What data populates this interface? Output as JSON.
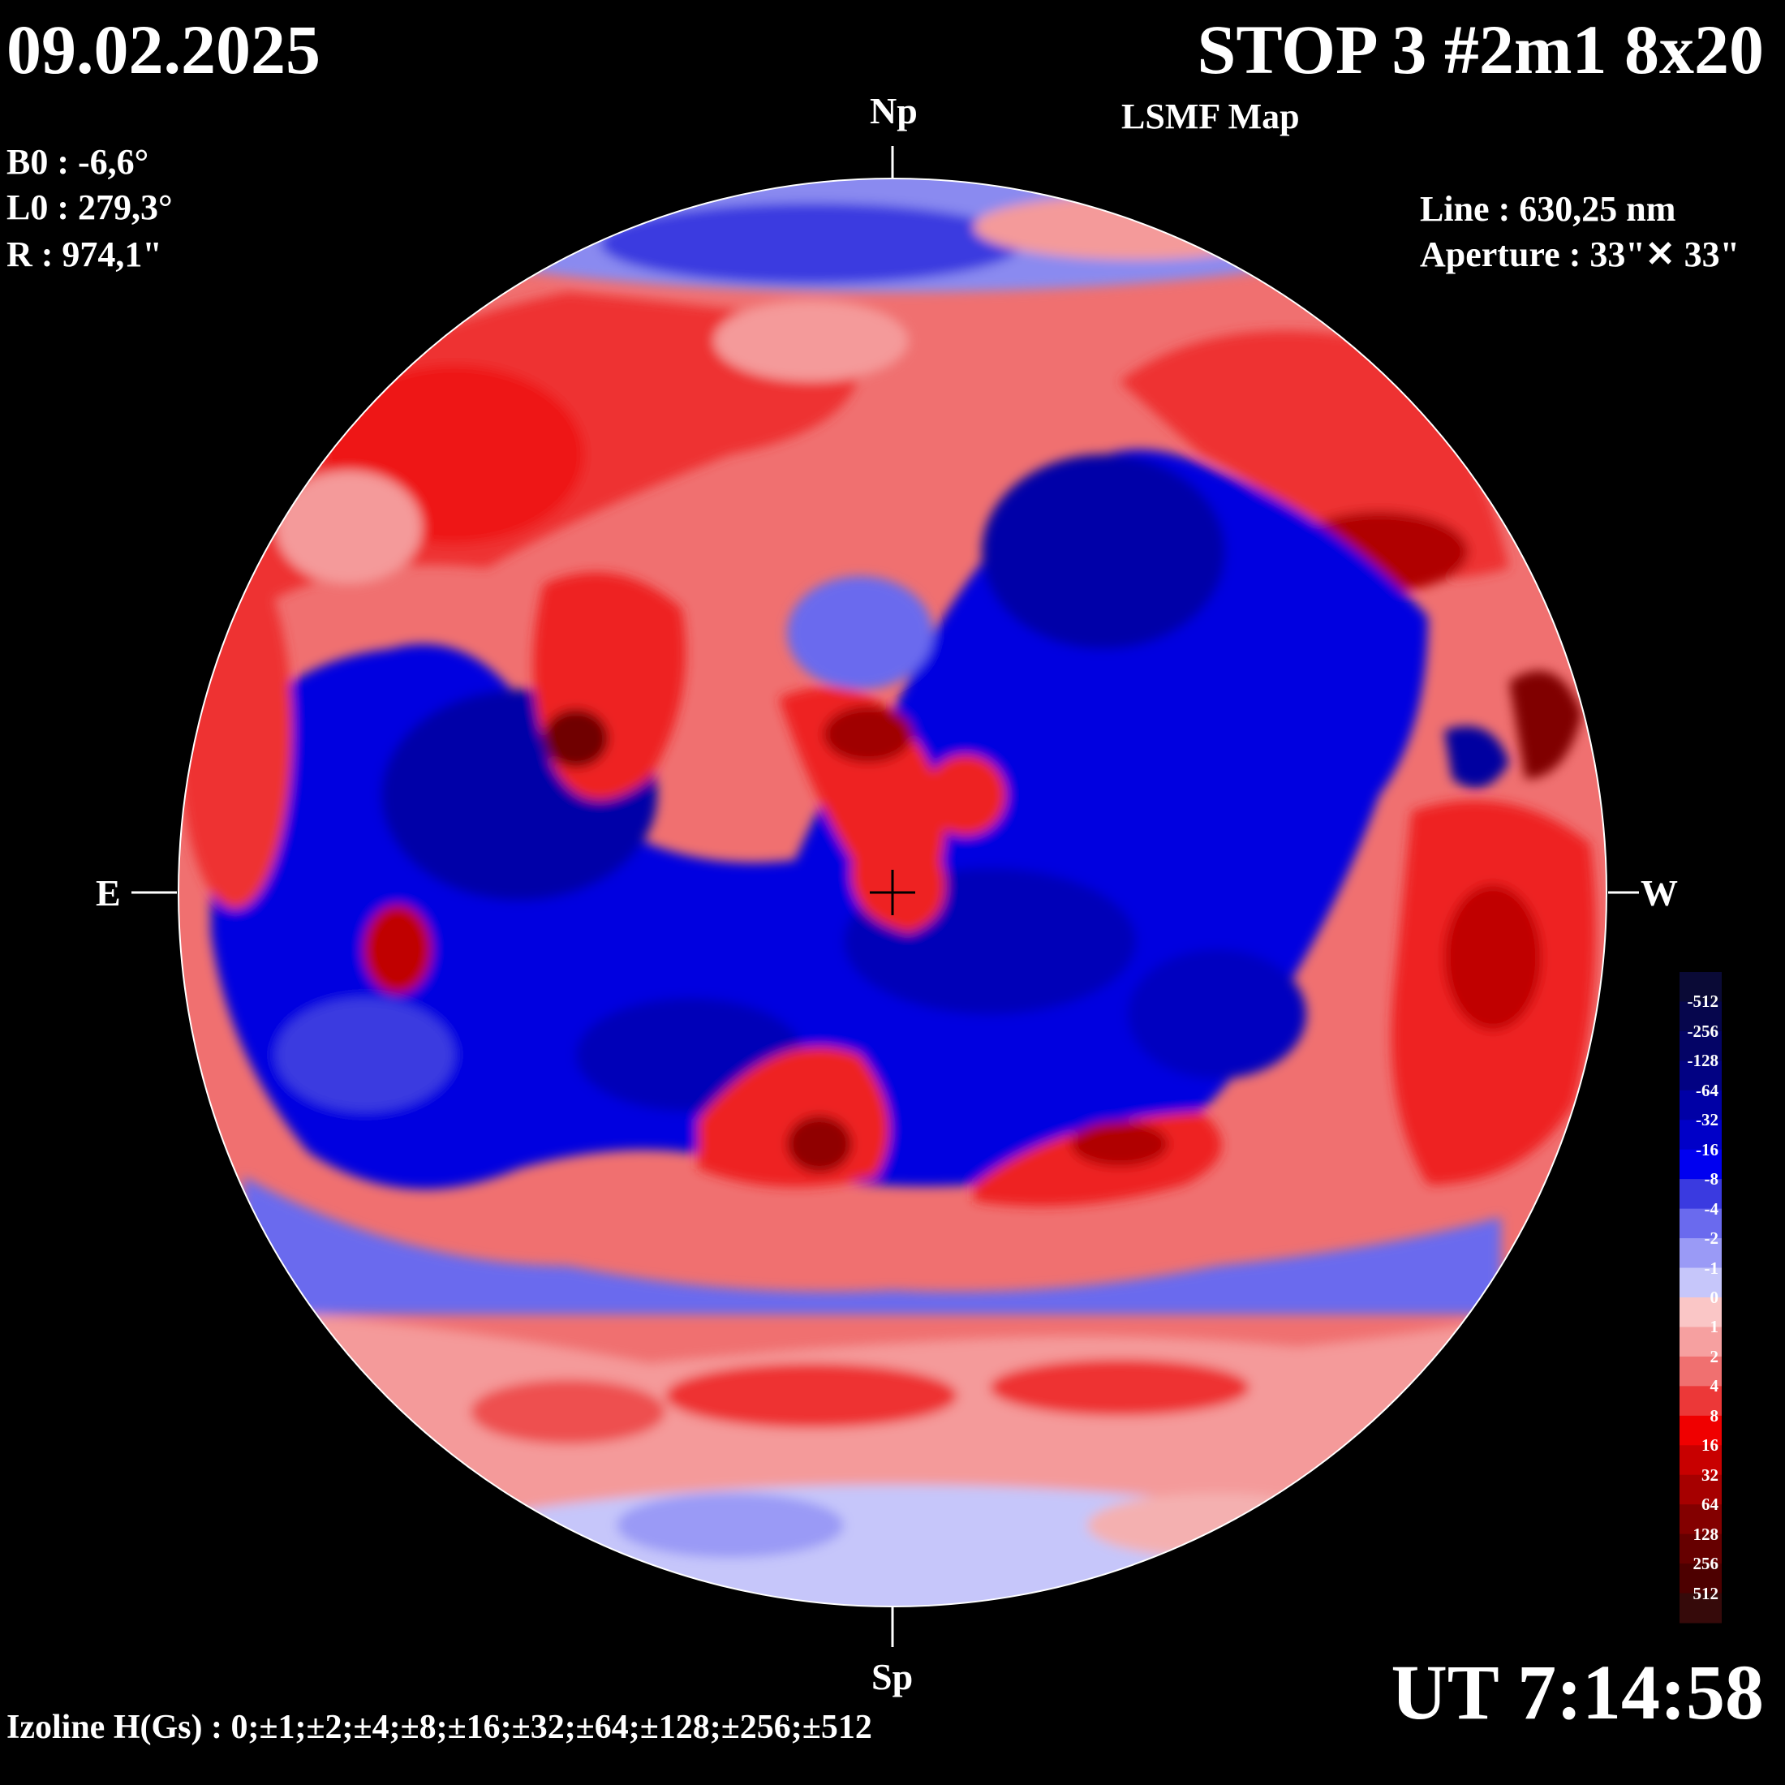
{
  "header": {
    "date": "09.02.2025",
    "title": "STOP 3 #2m1 8x20",
    "subtitle": "LSMF  Map"
  },
  "params": {
    "b0": "B0 : -6,6°",
    "l0": "L0 : 279,3°",
    "r": "R  : 974,1\""
  },
  "instrument": {
    "line": "Line :  630,25 nm",
    "aperture": "Aperture : 33\"✕ 33\""
  },
  "directions": {
    "north": "Np",
    "south": "Sp",
    "east": "E",
    "west": "W"
  },
  "time": "UT 7:14:58",
  "izoline": "Izoline H(Gs) : 0;±1;±2;±4;±8;±16;±32;±64;±128;±256;±512",
  "colorbar": {
    "labels": [
      "-512",
      "-256",
      "-128",
      "-64",
      "-32",
      "-16",
      "-8",
      "-4",
      "-2",
      "-1",
      "0",
      "1",
      "2",
      "4",
      "8",
      "16",
      "32",
      "64",
      "128",
      "256",
      "512"
    ],
    "colors": [
      "#0a0a36",
      "#06064d",
      "#040466",
      "#020283",
      "#0000a6",
      "#0000c8",
      "#0000f0",
      "#3a3ae0",
      "#6a6aee",
      "#9a9af6",
      "#c6c6fa",
      "#fac6c6",
      "#f6a0a0",
      "#f07070",
      "#ec3838",
      "#f00000",
      "#c80000",
      "#a60000",
      "#830000",
      "#660000",
      "#4d0000",
      "#360a0a"
    ]
  },
  "palette": {
    "deep_blue": "#0000a0",
    "blue": "#0000e8",
    "mid_blue": "#4848e8",
    "light_blue": "#9a9af6",
    "pale_blue": "#c6c6fa",
    "pale_red": "#fac6c6",
    "light_red": "#f49a9a",
    "red": "#ee3030",
    "deep_red": "#c00000",
    "dark_red": "#800000"
  }
}
